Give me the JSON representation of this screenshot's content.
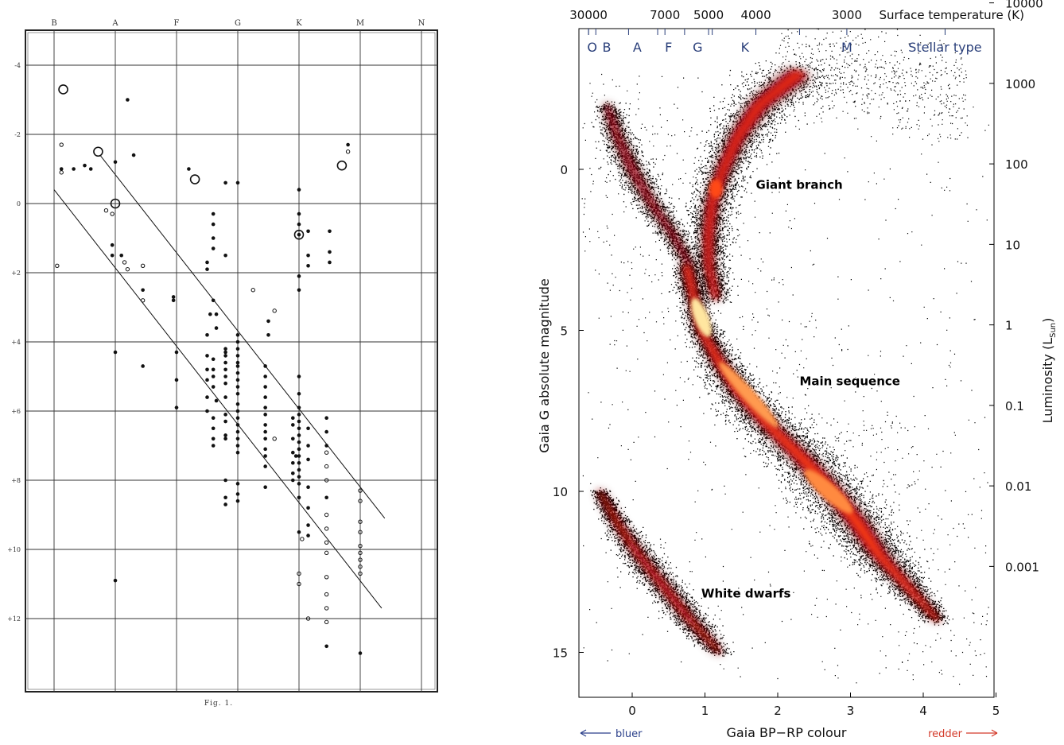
{
  "chart_data": [
    {
      "type": "scatter",
      "panel": "left",
      "caption": "Fig. 1.",
      "x_categories": [
        "B",
        "A",
        "F",
        "G",
        "K",
        "M",
        "N"
      ],
      "y_ticks": [
        "-4",
        "-2",
        "0",
        "+2",
        "+4",
        "+6",
        "+8",
        "+10",
        "+12"
      ],
      "ylim": [
        -5,
        14
      ],
      "grid": true,
      "points": [
        [
          0.15,
          -3.3,
          2
        ],
        [
          0.12,
          -1.7,
          0
        ],
        [
          0.12,
          -1.0,
          1
        ],
        [
          0.12,
          -0.9,
          0
        ],
        [
          0.32,
          -1.0,
          1
        ],
        [
          0.5,
          -1.1,
          1
        ],
        [
          0.6,
          -1.0,
          1
        ],
        [
          0.72,
          -1.5,
          2
        ],
        [
          1.2,
          -3.0,
          1
        ],
        [
          1.3,
          -1.4,
          1
        ],
        [
          1.0,
          -1.2,
          1
        ],
        [
          1.0,
          0.0,
          2
        ],
        [
          0.85,
          0.2,
          0
        ],
        [
          0.95,
          0.3,
          0
        ],
        [
          0.95,
          1.2,
          1
        ],
        [
          0.95,
          1.5,
          1
        ],
        [
          1.15,
          1.7,
          0
        ],
        [
          1.2,
          1.9,
          0
        ],
        [
          1.1,
          1.5,
          1
        ],
        [
          1.45,
          1.8,
          0
        ],
        [
          1.45,
          2.5,
          1
        ],
        [
          1.45,
          2.8,
          0
        ],
        [
          1.45,
          4.7,
          1
        ],
        [
          1.0,
          4.3,
          1
        ],
        [
          1.0,
          10.9,
          1
        ],
        [
          0.05,
          1.8,
          0
        ],
        [
          1.95,
          2.7,
          1
        ],
        [
          1.95,
          2.8,
          1
        ],
        [
          2.0,
          4.3,
          1
        ],
        [
          2.0,
          5.1,
          1
        ],
        [
          2.0,
          5.9,
          1
        ],
        [
          2.2,
          -1.0,
          1
        ],
        [
          2.3,
          -0.7,
          2
        ],
        [
          2.55,
          3.2,
          1
        ],
        [
          2.5,
          3.8,
          1
        ],
        [
          2.5,
          4.4,
          1
        ],
        [
          2.5,
          4.8,
          1
        ],
        [
          2.5,
          5.1,
          1
        ],
        [
          2.5,
          5.6,
          1
        ],
        [
          2.5,
          6.0,
          1
        ],
        [
          2.5,
          1.7,
          1
        ],
        [
          2.5,
          1.9,
          1
        ],
        [
          2.8,
          -0.6,
          1
        ],
        [
          2.8,
          1.5,
          1
        ],
        [
          2.8,
          4.2,
          1
        ],
        [
          2.8,
          4.3,
          1
        ],
        [
          2.8,
          4.4,
          1
        ],
        [
          2.8,
          4.6,
          1
        ],
        [
          2.8,
          4.8,
          1
        ],
        [
          2.8,
          5.0,
          1
        ],
        [
          2.8,
          5.2,
          1
        ],
        [
          2.8,
          5.6,
          1
        ],
        [
          2.8,
          6.1,
          1
        ],
        [
          2.8,
          6.3,
          1
        ],
        [
          2.8,
          6.7,
          1
        ],
        [
          2.8,
          6.8,
          1
        ],
        [
          2.8,
          8.0,
          1
        ],
        [
          2.8,
          8.5,
          1
        ],
        [
          2.8,
          8.7,
          1
        ],
        [
          3.0,
          -0.6,
          1
        ],
        [
          3.0,
          3.8,
          1
        ],
        [
          3.0,
          4.0,
          1
        ],
        [
          3.0,
          4.2,
          1
        ],
        [
          3.0,
          4.4,
          1
        ],
        [
          3.0,
          4.6,
          1
        ],
        [
          3.0,
          4.7,
          1
        ],
        [
          3.0,
          4.9,
          1
        ],
        [
          3.0,
          5.1,
          1
        ],
        [
          3.0,
          5.3,
          1
        ],
        [
          3.0,
          5.5,
          1
        ],
        [
          3.0,
          5.8,
          1
        ],
        [
          3.0,
          6.0,
          1
        ],
        [
          3.0,
          6.2,
          1
        ],
        [
          3.0,
          6.4,
          1
        ],
        [
          3.0,
          6.6,
          1
        ],
        [
          3.0,
          6.8,
          1
        ],
        [
          3.0,
          7.0,
          1
        ],
        [
          3.0,
          7.2,
          1
        ],
        [
          3.0,
          8.1,
          1
        ],
        [
          3.0,
          8.4,
          1
        ],
        [
          3.0,
          8.6,
          1
        ],
        [
          2.6,
          0.3,
          1
        ],
        [
          2.6,
          0.6,
          1
        ],
        [
          2.6,
          1.0,
          1
        ],
        [
          2.6,
          1.3,
          1
        ],
        [
          2.6,
          2.8,
          1
        ],
        [
          2.65,
          3.2,
          1
        ],
        [
          2.65,
          3.6,
          1
        ],
        [
          2.6,
          4.5,
          1
        ],
        [
          2.6,
          4.8,
          1
        ],
        [
          2.6,
          5.0,
          1
        ],
        [
          2.6,
          5.3,
          1
        ],
        [
          2.65,
          5.7,
          1
        ],
        [
          2.6,
          6.2,
          1
        ],
        [
          2.6,
          6.5,
          1
        ],
        [
          2.6,
          6.8,
          1
        ],
        [
          2.6,
          7.0,
          1
        ],
        [
          3.25,
          2.5,
          0
        ],
        [
          3.5,
          3.4,
          1
        ],
        [
          3.5,
          3.8,
          1
        ],
        [
          3.45,
          4.7,
          1
        ],
        [
          3.45,
          5.0,
          1
        ],
        [
          3.45,
          5.3,
          1
        ],
        [
          3.45,
          5.6,
          1
        ],
        [
          3.45,
          5.9,
          1
        ],
        [
          3.45,
          6.1,
          1
        ],
        [
          3.45,
          6.4,
          1
        ],
        [
          3.45,
          6.6,
          1
        ],
        [
          3.45,
          6.8,
          1
        ],
        [
          3.45,
          7.1,
          1
        ],
        [
          3.45,
          7.3,
          1
        ],
        [
          3.45,
          7.6,
          1
        ],
        [
          3.45,
          8.2,
          1
        ],
        [
          3.6,
          3.1,
          0
        ],
        [
          3.6,
          6.8,
          0
        ],
        [
          4.0,
          -0.4,
          1
        ],
        [
          4.0,
          0.3,
          1
        ],
        [
          4.0,
          0.6,
          1
        ],
        [
          4.0,
          0.9,
          1
        ],
        [
          4.0,
          2.1,
          1
        ],
        [
          4.0,
          2.5,
          1
        ],
        [
          4.0,
          5.0,
          1
        ],
        [
          4.0,
          5.5,
          1
        ],
        [
          4.0,
          5.9,
          1
        ],
        [
          4.0,
          6.1,
          1
        ],
        [
          4.0,
          6.3,
          1
        ],
        [
          4.0,
          6.5,
          1
        ],
        [
          4.0,
          6.7,
          1
        ],
        [
          4.0,
          6.9,
          1
        ],
        [
          4.0,
          7.1,
          1
        ],
        [
          4.0,
          7.3,
          1
        ],
        [
          4.0,
          7.5,
          1
        ],
        [
          4.0,
          7.7,
          1
        ],
        [
          4.0,
          7.9,
          1
        ],
        [
          4.0,
          8.1,
          1
        ],
        [
          4.0,
          8.5,
          1
        ],
        [
          4.0,
          9.5,
          1
        ],
        [
          4.0,
          10.7,
          0
        ],
        [
          4.0,
          11.0,
          0
        ],
        [
          4.05,
          9.7,
          0
        ],
        [
          4.0,
          0.9,
          2
        ],
        [
          3.9,
          6.2,
          1
        ],
        [
          3.9,
          6.4,
          1
        ],
        [
          3.9,
          6.8,
          1
        ],
        [
          3.9,
          7.2,
          1
        ],
        [
          3.9,
          7.5,
          1
        ],
        [
          3.9,
          7.8,
          1
        ],
        [
          3.9,
          8.0,
          1
        ],
        [
          3.95,
          7.3,
          1
        ],
        [
          4.15,
          0.8,
          1
        ],
        [
          4.15,
          1.5,
          1
        ],
        [
          4.15,
          1.8,
          1
        ],
        [
          4.15,
          6.5,
          1
        ],
        [
          4.15,
          7.0,
          1
        ],
        [
          4.15,
          7.4,
          1
        ],
        [
          4.15,
          8.2,
          1
        ],
        [
          4.15,
          8.8,
          1
        ],
        [
          4.15,
          9.3,
          1
        ],
        [
          4.15,
          9.6,
          1
        ],
        [
          4.15,
          12.0,
          0
        ],
        [
          4.45,
          6.2,
          1
        ],
        [
          4.45,
          6.6,
          1
        ],
        [
          4.45,
          7.0,
          1
        ],
        [
          4.45,
          8.5,
          1
        ],
        [
          4.5,
          0.8,
          1
        ],
        [
          4.5,
          1.4,
          1
        ],
        [
          4.5,
          1.7,
          1
        ],
        [
          4.45,
          7.2,
          0
        ],
        [
          4.45,
          7.6,
          0
        ],
        [
          4.45,
          8.0,
          0
        ],
        [
          4.45,
          9.0,
          0
        ],
        [
          4.45,
          9.4,
          0
        ],
        [
          4.45,
          9.8,
          0
        ],
        [
          4.45,
          10.1,
          0
        ],
        [
          4.45,
          10.8,
          0
        ],
        [
          4.45,
          11.3,
          0
        ],
        [
          4.45,
          11.7,
          0
        ],
        [
          4.45,
          12.1,
          0
        ],
        [
          4.45,
          12.8,
          1
        ],
        [
          4.7,
          -1.1,
          2
        ],
        [
          4.8,
          -1.7,
          1
        ],
        [
          4.8,
          -1.5,
          0
        ],
        [
          5.0,
          8.3,
          0
        ],
        [
          5.0,
          8.6,
          0
        ],
        [
          5.0,
          9.2,
          0
        ],
        [
          5.0,
          9.5,
          0
        ],
        [
          5.0,
          9.9,
          0
        ],
        [
          5.0,
          10.1,
          0
        ],
        [
          5.0,
          10.3,
          0
        ],
        [
          5.0,
          10.5,
          0
        ],
        [
          5.0,
          10.7,
          0
        ],
        [
          5.0,
          13.0,
          1
        ]
      ],
      "reference_lines": [
        [
          [
            0.0,
            -0.4
          ],
          [
            5.35,
            11.7
          ]
        ],
        [
          [
            0.75,
            -1.4
          ],
          [
            5.4,
            9.1
          ]
        ]
      ]
    },
    {
      "type": "heatmap",
      "panel": "right",
      "xlabel": "Gaia BP−RP colour",
      "ylabel": "Gaia G absolute magnitude",
      "y2label": "Luminosity (L",
      "y2label_sub": "Sun",
      "y2label_end": ")",
      "x2label": "Surface temperature (K)",
      "xlim": [
        -0.8,
        5.0
      ],
      "ylim": [
        16.5,
        -5.0
      ],
      "x_ticks": [
        0,
        1,
        2,
        3,
        4,
        5
      ],
      "y_ticks": [
        0,
        5,
        10,
        15
      ],
      "luminosity_ticks": [
        {
          "value": 10000,
          "label": "10000"
        },
        {
          "value": 1000,
          "label": "1000"
        },
        {
          "value": 100,
          "label": "100"
        },
        {
          "value": 10,
          "label": "10"
        },
        {
          "value": 1,
          "label": "1"
        },
        {
          "value": 0.1,
          "label": "0.1"
        },
        {
          "value": 0.01,
          "label": "0.01"
        },
        {
          "value": 0.001,
          "label": "0.001"
        }
      ],
      "temperature_ticks": [
        {
          "value": 30000,
          "colour": -0.6,
          "label": "30000"
        },
        {
          "value": 7000,
          "colour": 0.45,
          "label": "7000"
        },
        {
          "value": 5000,
          "colour": 1.05,
          "label": "5000"
        },
        {
          "value": 4000,
          "colour": 1.7,
          "label": "4000"
        },
        {
          "value": 3000,
          "colour": 2.95,
          "label": "3000"
        }
      ],
      "temperature_minor_ticks": [
        -0.6,
        -0.5,
        -0.05,
        0.35,
        0.72,
        1.1,
        2.3,
        4.3
      ],
      "spectral_types": [
        {
          "label": "O",
          "colour": -0.55
        },
        {
          "label": "B",
          "colour": -0.35
        },
        {
          "label": "A",
          "colour": 0.07
        },
        {
          "label": "F",
          "colour": 0.5
        },
        {
          "label": "G",
          "colour": 0.9
        },
        {
          "label": "K",
          "colour": 1.55
        },
        {
          "label": "M",
          "colour": 2.95
        },
        {
          "label": "Stellar type",
          "colour": 4.3
        }
      ],
      "annotations": [
        {
          "text": "Giant branch",
          "x": 1.7,
          "y": 0.6
        },
        {
          "text": "Main sequence",
          "x": 2.3,
          "y": 6.7
        },
        {
          "text": "White dwarfs",
          "x": 0.95,
          "y": 13.3
        }
      ],
      "direction_labels": {
        "left": "bluer",
        "right": "redder"
      },
      "colors": {
        "low": "#000000",
        "mid": "#b00010",
        "high": "#ff3b10",
        "peak": "#fff2a0",
        "axis_top": "#2a3f7a",
        "bluer": "#2a3f8a",
        "redder": "#d33a2a"
      }
    }
  ]
}
